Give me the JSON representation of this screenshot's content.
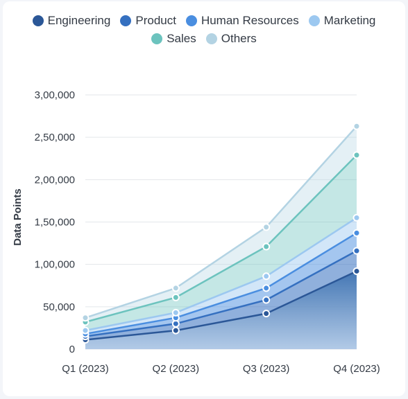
{
  "chart_data": {
    "type": "area",
    "stacked": true,
    "x": [
      "Q1 (2023)",
      "Q2 (2023)",
      "Q3 (2023)",
      "Q4 (2023)"
    ],
    "ylabel": "Data Points",
    "ylim": [
      0,
      300000
    ],
    "yticks": [
      0,
      50000,
      100000,
      150000,
      200000,
      250000,
      300000
    ],
    "ytick_labels": [
      "0",
      "50,000",
      "1,00,000",
      "1,50,000",
      "2,00,000",
      "2,50,000",
      "3,00,000"
    ],
    "grid": true,
    "legend_position": "top",
    "series": [
      {
        "name": "Engineering",
        "color": "#2b5797",
        "values": [
          11000,
          22000,
          42000,
          92000
        ]
      },
      {
        "name": "Product",
        "color": "#3570c0",
        "values": [
          4000,
          8000,
          16000,
          24000
        ]
      },
      {
        "name": "Human Resources",
        "color": "#4a8ee0",
        "values": [
          3000,
          7000,
          14000,
          21000
        ]
      },
      {
        "name": "Marketing",
        "color": "#9cc8f0",
        "values": [
          4000,
          6000,
          14000,
          18000
        ]
      },
      {
        "name": "Sales",
        "color": "#6cc3be",
        "values": [
          10000,
          18000,
          35000,
          74000
        ]
      },
      {
        "name": "Others",
        "color": "#b3d3e3",
        "values": [
          5000,
          11000,
          23000,
          34000
        ]
      }
    ]
  }
}
